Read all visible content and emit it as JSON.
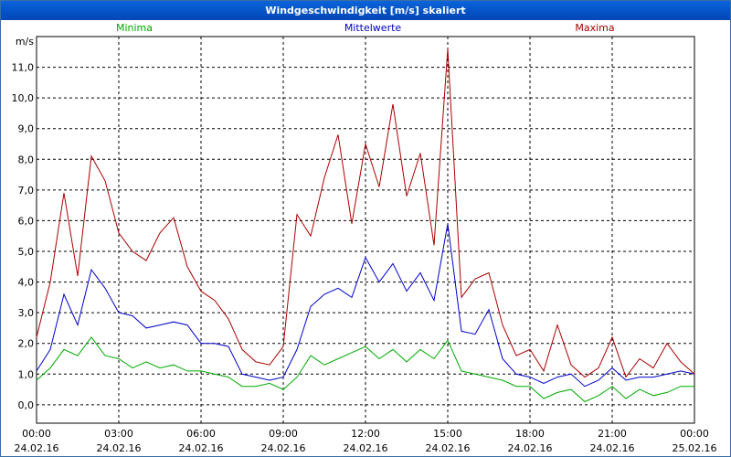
{
  "window": {
    "title": "Windgeschwindigkeit [m/s] skaliert"
  },
  "chart_data": {
    "type": "line",
    "title": "Windgeschwindigkeit [m/s] skaliert",
    "ylabel": "m/s",
    "xlabel": "",
    "ylim": [
      -0.6,
      12.0
    ],
    "xlim_hours": [
      0,
      24
    ],
    "grid": true,
    "grid_style": "dashed",
    "legend": "top-center, inline labels",
    "x_ticks": [
      {
        "time": "00:00",
        "date": "24.02.16"
      },
      {
        "time": "03:00",
        "date": "24.02.16"
      },
      {
        "time": "06:00",
        "date": "24.02.16"
      },
      {
        "time": "09:00",
        "date": "24.02.16"
      },
      {
        "time": "12:00",
        "date": "24.02.16"
      },
      {
        "time": "15:00",
        "date": "24.02.16"
      },
      {
        "time": "18:00",
        "date": "24.02.16"
      },
      {
        "time": "21:00",
        "date": "24.02.16"
      },
      {
        "time": "00:00",
        "date": "25.02.16"
      }
    ],
    "y_ticks": [
      "0,0",
      "1,0",
      "2,0",
      "3,0",
      "4,0",
      "5,0",
      "6,0",
      "7,0",
      "8,0",
      "9,0",
      "10,0",
      "11,0"
    ],
    "y_tick_values": [
      0,
      1,
      2,
      3,
      4,
      5,
      6,
      7,
      8,
      9,
      10,
      11
    ],
    "series": [
      {
        "name": "Minima",
        "color": "#00aa00",
        "x": [
          0,
          0.5,
          1,
          1.5,
          2,
          2.5,
          3,
          3.5,
          4,
          4.5,
          5,
          5.5,
          6,
          6.5,
          7,
          7.5,
          8,
          8.5,
          9,
          9.5,
          10,
          10.5,
          11,
          11.5,
          12,
          12.5,
          13,
          13.5,
          14,
          14.5,
          15,
          15.5,
          16,
          16.5,
          17,
          17.5,
          18,
          18.5,
          19,
          19.5,
          20,
          20.5,
          21,
          21.5,
          22,
          22.5,
          23,
          23.5,
          24
        ],
        "values": [
          0.8,
          1.2,
          1.8,
          1.6,
          2.2,
          1.6,
          1.5,
          1.2,
          1.4,
          1.2,
          1.3,
          1.1,
          1.1,
          1.0,
          0.9,
          0.6,
          0.6,
          0.7,
          0.5,
          0.9,
          1.6,
          1.3,
          1.5,
          1.7,
          1.9,
          1.5,
          1.8,
          1.4,
          1.8,
          1.5,
          2.1,
          1.1,
          1.0,
          0.9,
          0.8,
          0.6,
          0.6,
          0.2,
          0.4,
          0.5,
          0.1,
          0.3,
          0.6,
          0.2,
          0.5,
          0.3,
          0.4,
          0.6,
          0.6
        ]
      },
      {
        "name": "Mittelwerte",
        "color": "#0000cc",
        "x": [
          0,
          0.5,
          1,
          1.5,
          2,
          2.5,
          3,
          3.5,
          4,
          4.5,
          5,
          5.5,
          6,
          6.5,
          7,
          7.5,
          8,
          8.5,
          9,
          9.5,
          10,
          10.5,
          11,
          11.5,
          12,
          12.5,
          13,
          13.5,
          14,
          14.5,
          15,
          15.5,
          16,
          16.5,
          17,
          17.5,
          18,
          18.5,
          19,
          19.5,
          20,
          20.5,
          21,
          21.5,
          22,
          22.5,
          23,
          23.5,
          24
        ],
        "values": [
          1.1,
          1.8,
          3.6,
          2.6,
          4.4,
          3.8,
          3.0,
          2.9,
          2.5,
          2.6,
          2.7,
          2.6,
          2.0,
          2.0,
          1.9,
          1.0,
          0.9,
          0.8,
          0.9,
          1.8,
          3.2,
          3.6,
          3.8,
          3.5,
          4.8,
          4.0,
          4.6,
          3.7,
          4.3,
          3.4,
          5.9,
          2.4,
          2.3,
          3.1,
          1.5,
          1.0,
          0.9,
          0.7,
          0.9,
          1.0,
          0.6,
          0.8,
          1.2,
          0.8,
          0.9,
          0.9,
          1.0,
          1.1,
          1.0
        ]
      },
      {
        "name": "Maxima",
        "color": "#aa0000",
        "x": [
          0,
          0.5,
          1,
          1.5,
          2,
          2.5,
          3,
          3.5,
          4,
          4.5,
          5,
          5.5,
          6,
          6.5,
          7,
          7.5,
          8,
          8.5,
          9,
          9.5,
          10,
          10.5,
          11,
          11.5,
          12,
          12.5,
          13,
          13.5,
          14,
          14.5,
          15,
          15.5,
          16,
          16.5,
          17,
          17.5,
          18,
          18.5,
          19,
          19.5,
          20,
          20.5,
          21,
          21.5,
          22,
          22.5,
          23,
          23.5,
          24
        ],
        "values": [
          2.2,
          4.0,
          6.9,
          4.2,
          8.1,
          7.3,
          5.6,
          5.0,
          4.7,
          5.6,
          6.1,
          4.5,
          3.7,
          3.4,
          2.8,
          1.8,
          1.4,
          1.3,
          1.9,
          6.2,
          5.5,
          7.4,
          8.8,
          5.9,
          8.5,
          7.1,
          9.8,
          6.8,
          8.2,
          5.2,
          11.6,
          3.5,
          4.1,
          4.3,
          2.6,
          1.6,
          1.8,
          1.1,
          2.6,
          1.3,
          0.9,
          1.2,
          2.2,
          0.9,
          1.5,
          1.2,
          2.0,
          1.4,
          1.0
        ]
      }
    ]
  }
}
